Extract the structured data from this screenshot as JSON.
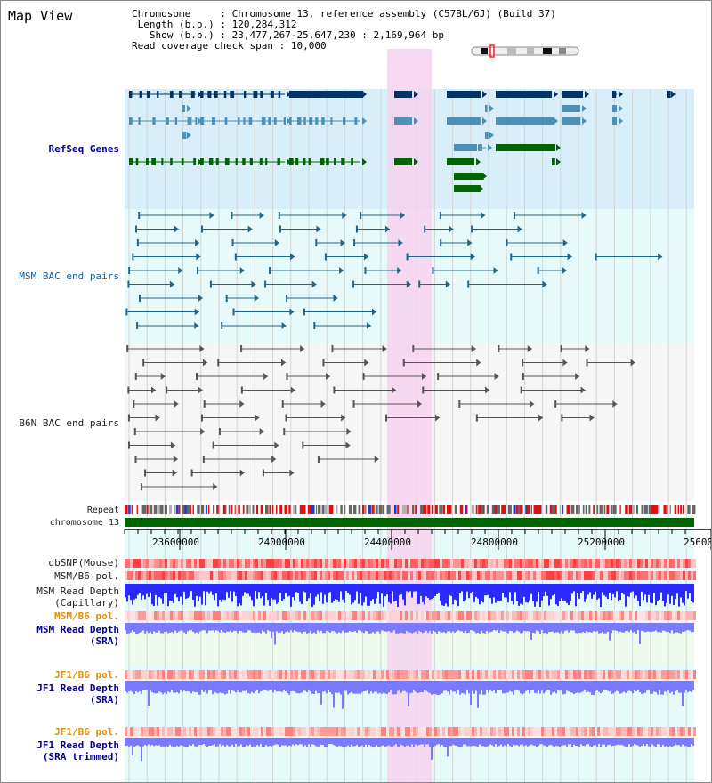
{
  "title": "Map View",
  "info": {
    "chromosome_label": "Chromosome",
    "chromosome_value": "Chromosome 13, reference assembly (C57BL/6J) (Build 37)",
    "length_label": "Length (b.p.)",
    "length_value": "120,284,312",
    "show_label": "Show (b.p.)",
    "show_value": "23,477,267-25,647,230 : 2,169,964 bp",
    "coverage_label": "Read coverage check span",
    "coverage_value": "10,000"
  },
  "tracks": {
    "refseq": "RefSeq Genes",
    "msm_bac": "MSM BAC end pairs",
    "b6n_bac": "B6N BAC end pairs",
    "repeat": "Repeat",
    "chromosome": "chromosome 13"
  },
  "axis": {
    "ticks": [
      "23600000",
      "24000000",
      "24400000",
      "24800000",
      "25200000",
      "25600"
    ]
  },
  "depth_tracks": {
    "dbsnp": "dbSNP(Mouse)",
    "msm_pol": "MSM/B6 pol.",
    "msm_depth_cap": "MSM Read Depth\n(Capillary)",
    "msm_pol2": "MSM/B6 pol.",
    "msm_depth_sra": "MSM Read Depth\n(SRA)",
    "jf1_pol": "JF1/B6 pol.",
    "jf1_depth": "JF1 Read Depth\n(SRA)",
    "jf1_pol2": "JF1/B6 pol.",
    "jf1_depth_trim": "JF1 Read Depth\n(SRA trimmed)"
  },
  "colors": {
    "highlight": "#f6d2ee",
    "refseq_bg": "#d8eef8",
    "cyan_bg": "#e6fafa",
    "green_bg": "#eefaee",
    "gene_dark": "#003366",
    "gene_mid": "#4a90b8",
    "gene_green": "#006400",
    "bac_msm": "#226688",
    "bac_b6n": "#555555",
    "depth_blue": "#2a2aff",
    "depth_light": "#7a7aff",
    "pol_red": "#ff4040",
    "label_navy": "#000090",
    "label_gold": "#e09000"
  }
}
